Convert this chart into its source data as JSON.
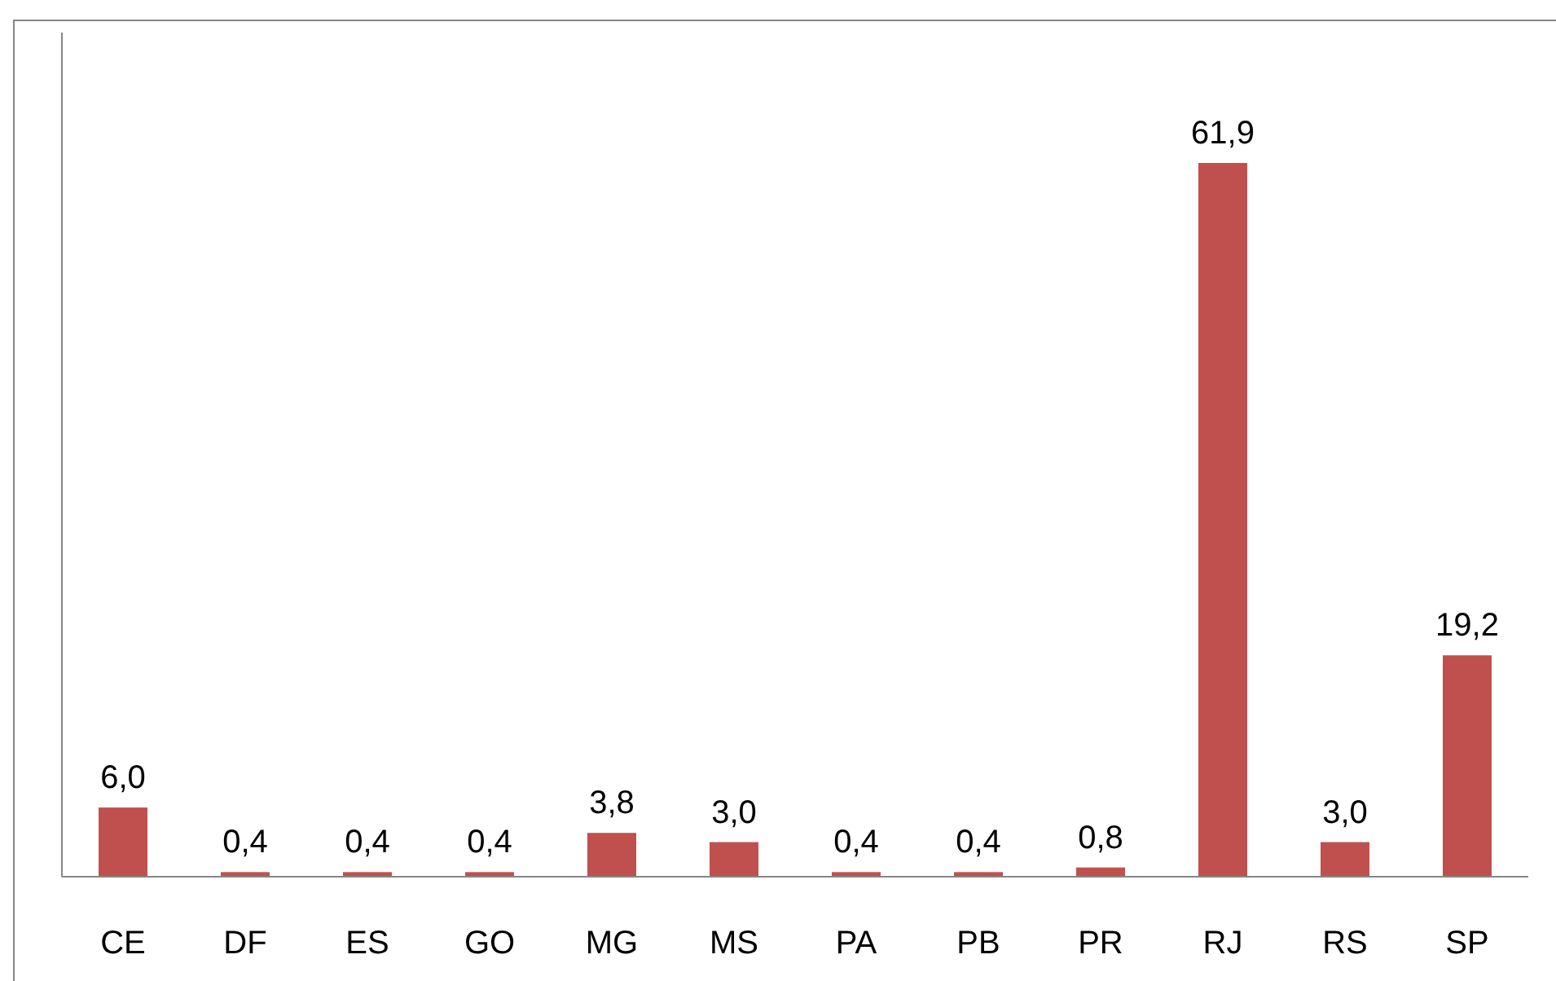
{
  "chart_data": {
    "type": "bar",
    "categories": [
      "CE",
      "DF",
      "ES",
      "GO",
      "MG",
      "MS",
      "PA",
      "PB",
      "PR",
      "RJ",
      "RS",
      "SP"
    ],
    "values": [
      6.0,
      0.4,
      0.4,
      0.4,
      3.8,
      3.0,
      0.4,
      0.4,
      0.8,
      61.9,
      3.0,
      19.2
    ],
    "value_labels": [
      "6,0",
      "0,4",
      "0,4",
      "0,4",
      "3,8",
      "3,0",
      "0,4",
      "0,4",
      "0,8",
      "61,9",
      "3,0",
      "19,2"
    ],
    "color": "#c0504d"
  }
}
